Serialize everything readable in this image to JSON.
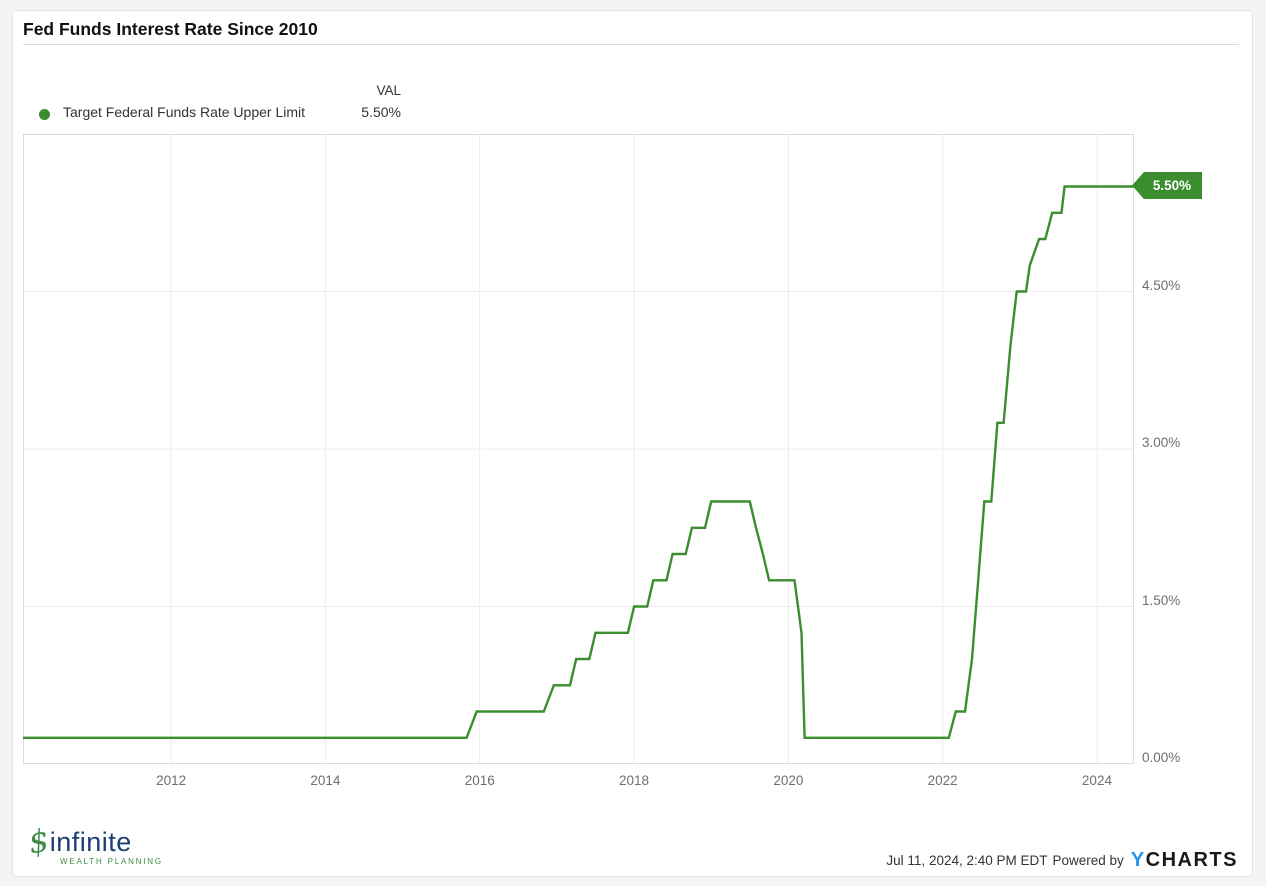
{
  "header": {
    "title": "Fed Funds Interest Rate Since 2010"
  },
  "legend": {
    "dot_icon": "series-dot",
    "series_label": "Target Federal Funds Rate Upper Limit",
    "val_header": "VAL",
    "val_value": "5.50%"
  },
  "colors": {
    "series_green": "#3a8e2e",
    "grid": "#ececec",
    "plot_border": "#dcdcdc",
    "axis_label": "#6f6f6f",
    "brand_blue": "#2196f3",
    "logo_navy": "#1d3f72",
    "logo_green": "#3f8a46"
  },
  "chart_data": {
    "type": "line",
    "title": "Fed Funds Interest Rate Since 2010",
    "xlabel": "",
    "ylabel": "",
    "x_range": [
      2010.08,
      2024.48
    ],
    "y_range": [
      0,
      6.0
    ],
    "grid": true,
    "legend_position": "top-left",
    "x_ticks": [
      {
        "value": 2012,
        "label": "2012"
      },
      {
        "value": 2014,
        "label": "2014"
      },
      {
        "value": 2016,
        "label": "2016"
      },
      {
        "value": 2018,
        "label": "2018"
      },
      {
        "value": 2020,
        "label": "2020"
      },
      {
        "value": 2022,
        "label": "2022"
      },
      {
        "value": 2024,
        "label": "2024"
      }
    ],
    "y_ticks": [
      {
        "value": 0,
        "label": "0.00%"
      },
      {
        "value": 1.5,
        "label": "1.50%"
      },
      {
        "value": 3,
        "label": "3.00%"
      },
      {
        "value": 4.5,
        "label": "4.50%"
      }
    ],
    "series": [
      {
        "name": "Target Federal Funds Rate Upper Limit",
        "color": "#3a8e2e",
        "unit": "%",
        "last_value_label": "5.50%",
        "points": [
          [
            2010.08,
            0.25
          ],
          [
            2015.83,
            0.25
          ],
          [
            2015.96,
            0.5
          ],
          [
            2016.83,
            0.5
          ],
          [
            2016.96,
            0.75
          ],
          [
            2017.17,
            0.75
          ],
          [
            2017.25,
            1.0
          ],
          [
            2017.42,
            1.0
          ],
          [
            2017.5,
            1.25
          ],
          [
            2017.92,
            1.25
          ],
          [
            2018.0,
            1.5
          ],
          [
            2018.17,
            1.5
          ],
          [
            2018.25,
            1.75
          ],
          [
            2018.42,
            1.75
          ],
          [
            2018.5,
            2.0
          ],
          [
            2018.67,
            2.0
          ],
          [
            2018.75,
            2.25
          ],
          [
            2018.92,
            2.25
          ],
          [
            2019.0,
            2.5
          ],
          [
            2019.5,
            2.5
          ],
          [
            2019.58,
            2.25
          ],
          [
            2019.67,
            2.0
          ],
          [
            2019.75,
            1.75
          ],
          [
            2020.08,
            1.75
          ],
          [
            2020.17,
            1.25
          ],
          [
            2020.21,
            0.25
          ],
          [
            2022.08,
            0.25
          ],
          [
            2022.17,
            0.5
          ],
          [
            2022.29,
            0.5
          ],
          [
            2022.38,
            1.0
          ],
          [
            2022.46,
            1.75
          ],
          [
            2022.54,
            2.5
          ],
          [
            2022.63,
            2.5
          ],
          [
            2022.71,
            3.25
          ],
          [
            2022.79,
            3.25
          ],
          [
            2022.88,
            4.0
          ],
          [
            2022.96,
            4.5
          ],
          [
            2023.08,
            4.5
          ],
          [
            2023.13,
            4.75
          ],
          [
            2023.25,
            5.0
          ],
          [
            2023.33,
            5.0
          ],
          [
            2023.42,
            5.25
          ],
          [
            2023.54,
            5.25
          ],
          [
            2023.58,
            5.5
          ],
          [
            2024.48,
            5.5
          ]
        ]
      }
    ],
    "end_badge": {
      "label": "5.50%",
      "color": "#3a8e2e"
    }
  },
  "footer": {
    "logo_icon": "dollar-sign-icon",
    "logo_word": "infinite",
    "logo_sub": "WEALTH PLANNING",
    "timestamp": "Jul 11, 2024, 2:40 PM EDT",
    "powered_by": "Powered by",
    "brand_y": "Y",
    "brand_rest": "CHARTS"
  }
}
